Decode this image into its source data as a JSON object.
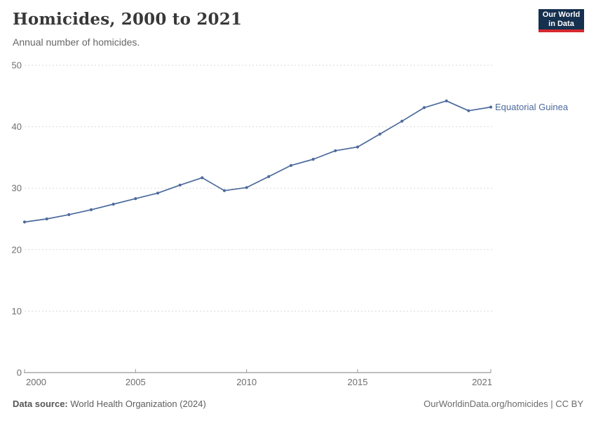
{
  "header": {
    "title": "Homicides, 2000 to 2021",
    "subtitle": "Annual number of homicides."
  },
  "logo": {
    "line1": "Our World",
    "line2": "in Data",
    "bg_color": "#16304f",
    "stripe_color": "#d7282f"
  },
  "chart_data": {
    "type": "line",
    "title": "Homicides, 2000 to 2021",
    "subtitle": "Annual number of homicides.",
    "x": [
      2000,
      2001,
      2002,
      2003,
      2004,
      2005,
      2006,
      2007,
      2008,
      2009,
      2010,
      2011,
      2012,
      2013,
      2014,
      2015,
      2016,
      2017,
      2018,
      2019,
      2020,
      2021
    ],
    "series": [
      {
        "name": "Equatorial Guinea",
        "color": "#4c6a9c",
        "values": [
          24.5,
          25.0,
          25.7,
          26.5,
          27.4,
          28.3,
          29.2,
          30.5,
          31.7,
          29.6,
          30.1,
          31.9,
          33.7,
          34.7,
          36.1,
          36.7,
          38.8,
          40.9,
          43.1,
          44.2,
          42.6,
          43.2
        ]
      }
    ],
    "xlabel": "",
    "ylabel": "",
    "ylim": [
      0,
      50
    ],
    "xlim": [
      2000,
      2021
    ],
    "yticks": [
      0,
      10,
      20,
      30,
      40,
      50
    ],
    "xticks": [
      2000,
      2005,
      2010,
      2015,
      2021
    ],
    "grid": "horizontal-dashed",
    "legend_position": "end-of-line-label",
    "grid_color": "#dadada",
    "axis_color": "#999999",
    "tick_label_color": "#6e6e6e"
  },
  "footer": {
    "source_label": "Data source:",
    "source_text": " World Health Organization (2024)",
    "right_text": "OurWorldinData.org/homicides | CC BY"
  }
}
